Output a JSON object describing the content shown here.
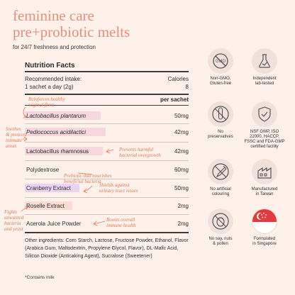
{
  "header": {
    "title_line1": "feminine care",
    "title_line2": "pre+probiotic melts",
    "subtitle": "for 24/7 freshness and protection"
  },
  "facts": {
    "heading": "Nutrition Facts",
    "intake_label": "Recommended intake:",
    "intake_value": "1 sachet a day (2g)",
    "calories_label": "Calories",
    "calories_value": "8",
    "per_sachet_label": "per sachet",
    "rows": [
      {
        "name": "Lactobacillus plantarum",
        "amount": "50mg"
      },
      {
        "name": "Pediococcus acidilactici",
        "amount": "42mg"
      },
      {
        "name": "Lactobacillus rhamnosus",
        "amount": "42mg"
      },
      {
        "name": "Polydextrose",
        "amount": "60mg"
      },
      {
        "name": "Cranberry Extract",
        "amount": "50mg"
      },
      {
        "name": "Roselle Extract",
        "amount": "2mg"
      },
      {
        "name": "Acerola Juice Powder",
        "amount": "2mg"
      }
    ],
    "ingredients": "Other ingredients: Corn Starch, Lactose, Fructose Powder, Ethanol, Flavor (Arabica Gum, Maltodextrin, Propylene Glycol, Flavor), DL-Malic Acid, Silicon Dioxide (Anticaking Agent), Sucralose (Sweetener)",
    "contains": "*Contains milk"
  },
  "notes": {
    "reinforces": [
      "Reinforces healthy",
      "vaginal flora"
    ],
    "soothes": [
      "Soothes",
      "& protects",
      "intimate",
      "areas"
    ],
    "prevents": [
      "Prevents harmful",
      "bacterial overgrowth"
    ],
    "prebiotic": [
      "Prebiotic that nourishes",
      "beneficial bacteria"
    ],
    "shields": [
      "Shields against",
      "urinary tract issues"
    ],
    "fights": [
      "Fights",
      "unwanted",
      "bacteria",
      "and yeast"
    ],
    "boosts": [
      "Boosts overall",
      "immune health"
    ]
  },
  "badges": [
    {
      "icon": "non-gmo-icon",
      "caption": [
        "Non-GMO,",
        "Gluten-free"
      ]
    },
    {
      "icon": "lab-flask-icon",
      "caption": [
        "Independent",
        "lab-tested"
      ]
    },
    {
      "icon": "test-tube-icon",
      "caption": [
        "No",
        "preservatives"
      ]
    },
    {
      "icon": "shield-check-icon",
      "caption": [
        "NSF GMP, ISO",
        "22000, HACCP,",
        "FSSC and FDA-GMP",
        "certified facility"
      ]
    },
    {
      "icon": "dropper-icon",
      "caption": [
        "No artificial",
        "colouring"
      ]
    },
    {
      "icon": "factory-icon",
      "caption": [
        "Manufactured",
        "in Taiwan"
      ]
    },
    {
      "icon": "no-nuts-icon",
      "caption": [
        "No say, nuts",
        "& pollen"
      ]
    },
    {
      "icon": "singapore-flag-icon",
      "caption": [
        "Formulated",
        "in Singapore"
      ]
    }
  ],
  "colors": {
    "background": "#fdf1ea",
    "title": "#e98f7c",
    "note": "#e07a55",
    "highlight_pink": "#f6d7df",
    "highlight_peach": "#f9ddd2",
    "highlight_lavender": "#e9d3ee",
    "flag_red": "#e23b3f"
  }
}
